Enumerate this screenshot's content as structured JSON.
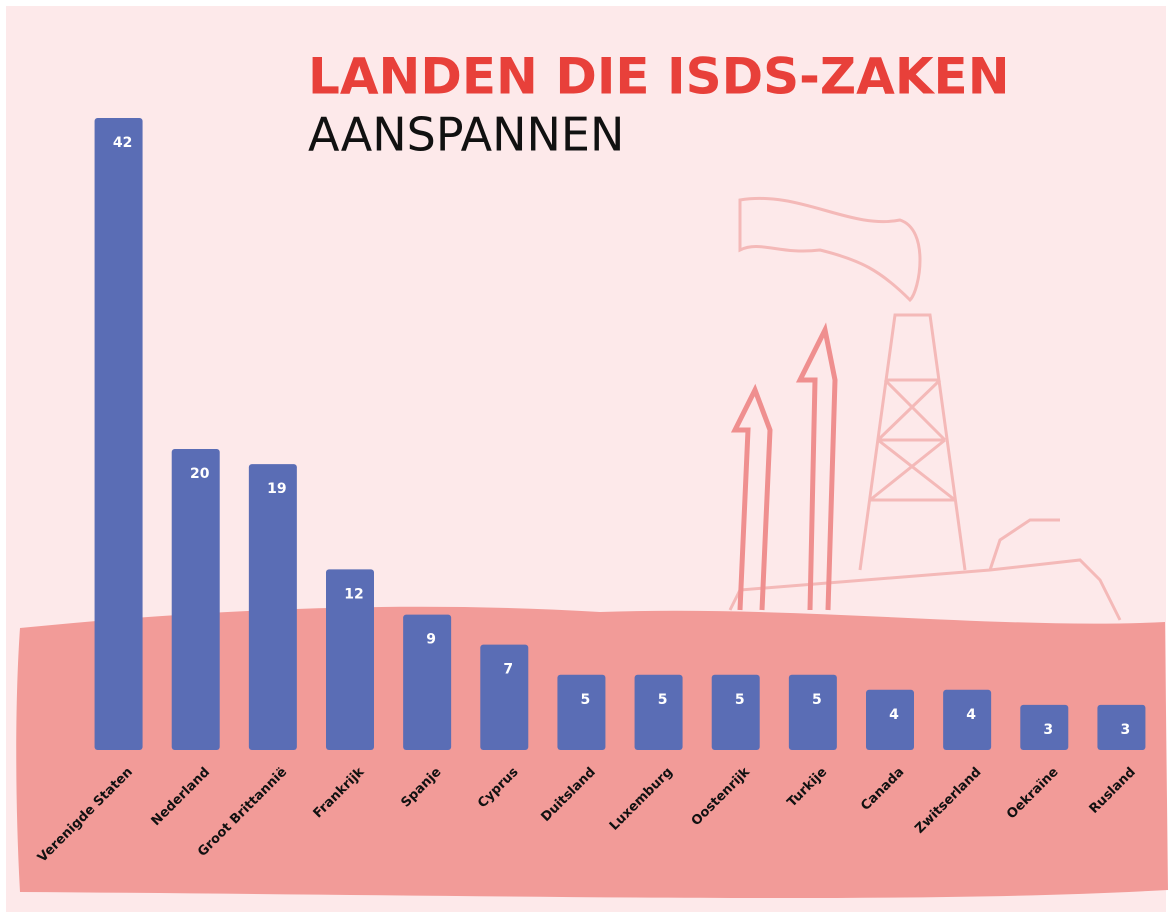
{
  "chart_data": {
    "type": "bar",
    "title": "LANDEN DIE ISDS-ZAKEN",
    "subtitle": "AANSPANNEN",
    "categories": [
      "Verenigde Staten",
      "Nederland",
      "Groot Brittannië",
      "Frankrijk",
      "Spanje",
      "Cyprus",
      "Duitsland",
      "Luxemburg",
      "Oostenrijk",
      "Turkije",
      "Canada",
      "Zwitserland",
      "Oekraïne",
      "Rusland"
    ],
    "values": [
      42,
      20,
      19,
      12,
      9,
      7,
      5,
      5,
      5,
      5,
      4,
      4,
      3,
      3
    ],
    "color": "#5a6db5",
    "ylim": [
      0,
      42
    ]
  }
}
